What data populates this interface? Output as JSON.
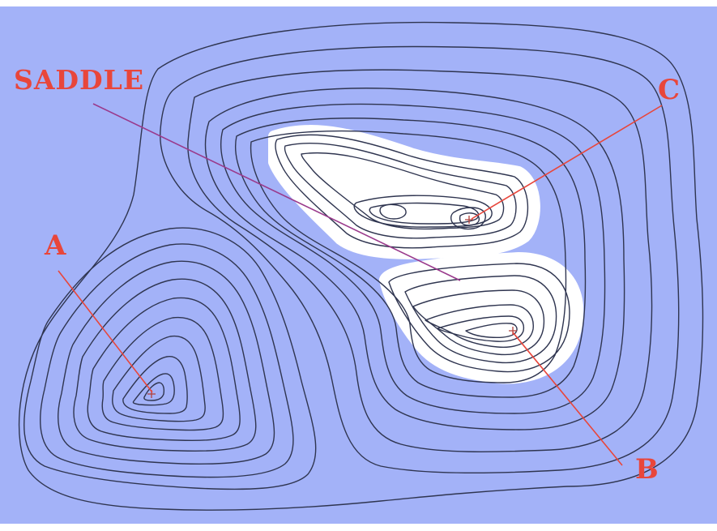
{
  "map": {
    "background_color": "#a3b2f8",
    "snow_color": "#ffffff",
    "contour_color": "#2f3550",
    "label_color": "#e8463b",
    "labels": {
      "saddle": "SADDLE",
      "peak_a": "A",
      "peak_b": "B",
      "peak_c": "C"
    }
  }
}
